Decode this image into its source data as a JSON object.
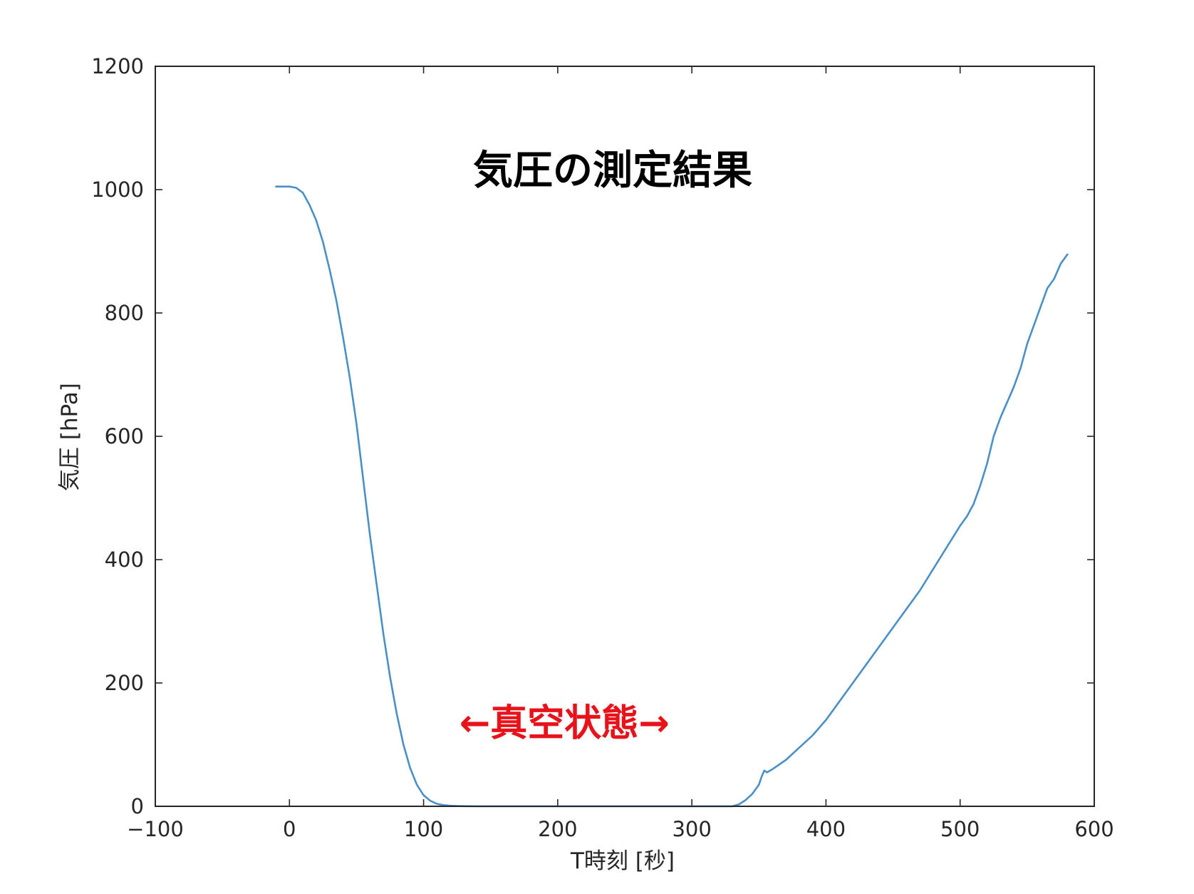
{
  "chart_data": {
    "type": "line",
    "title": "気圧の測定結果",
    "xlabel": "T時刻 [秒]",
    "ylabel": "気圧 [hPa]",
    "xlim": [
      -100,
      600
    ],
    "ylim": [
      0,
      1200
    ],
    "xticks": [
      "−100",
      "0",
      "100",
      "200",
      "300",
      "400",
      "500",
      "600"
    ],
    "yticks": [
      "0",
      "200",
      "400",
      "600",
      "800",
      "1000",
      "1200"
    ],
    "grid": false,
    "annotation": {
      "text": "←真空状態→",
      "color": "#e8121a",
      "x": 205,
      "y": 135
    },
    "series": [
      {
        "color": "#4a90c8",
        "x": [
          -10,
          0,
          5,
          10,
          15,
          20,
          25,
          30,
          35,
          40,
          45,
          50,
          55,
          60,
          65,
          70,
          75,
          80,
          85,
          90,
          95,
          100,
          105,
          110,
          115,
          120,
          125,
          130,
          140,
          150,
          200,
          250,
          300,
          320,
          330,
          335,
          340,
          345,
          350,
          352,
          354,
          356,
          360,
          370,
          380,
          390,
          400,
          410,
          420,
          430,
          440,
          450,
          460,
          470,
          480,
          490,
          500,
          505,
          510,
          515,
          520,
          525,
          530,
          540,
          545,
          550,
          560,
          565,
          570,
          575,
          580
        ],
        "y": [
          1005,
          1005,
          1003,
          995,
          975,
          950,
          915,
          870,
          820,
          760,
          695,
          620,
          530,
          440,
          360,
          280,
          210,
          150,
          100,
          62,
          35,
          18,
          9,
          4,
          2,
          1,
          0.5,
          0.2,
          0,
          0,
          0,
          0,
          0,
          0,
          0,
          3,
          10,
          20,
          35,
          48,
          58,
          55,
          60,
          75,
          95,
          115,
          140,
          170,
          200,
          230,
          260,
          290,
          320,
          350,
          385,
          420,
          455,
          470,
          490,
          520,
          555,
          600,
          630,
          680,
          710,
          750,
          810,
          840,
          855,
          880,
          895
        ]
      }
    ]
  }
}
